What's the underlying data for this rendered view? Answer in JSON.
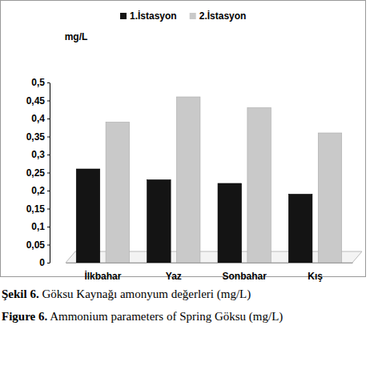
{
  "chart_data": {
    "type": "bar",
    "title": "Şekil 6. Göksu Kaynağı amonyum değerleri (mg/L)",
    "subtitle": "Figure 6. Ammonium parameters of Spring Göksu (mg/L)",
    "y_label": "mg/L",
    "categories": [
      "İlkbahar",
      "Yaz",
      "Sonbahar",
      "Kış"
    ],
    "series": [
      {
        "name": "1.İstasyon",
        "color": "#141414",
        "values": [
          0.26,
          0.23,
          0.22,
          0.19
        ]
      },
      {
        "name": "2.İstasyon",
        "color": "#c9c9c9",
        "values": [
          0.39,
          0.46,
          0.43,
          0.36
        ]
      }
    ],
    "ylim": [
      0,
      0.5
    ],
    "yticks": [
      0,
      {
        "value": 0.05,
        "label": "0,05"
      },
      {
        "value": 0.1,
        "label": "0,1"
      },
      {
        "value": 0.15,
        "label": "0,15"
      },
      {
        "value": 0.2,
        "label": "0,2"
      },
      {
        "value": 0.25,
        "label": "0,25"
      },
      {
        "value": 0.3,
        "label": "0,3"
      },
      {
        "value": 0.35,
        "label": "0,35"
      },
      {
        "value": 0.4,
        "label": "0,4"
      },
      {
        "value": 0.45,
        "label": "0,45"
      },
      {
        "value": 0.5,
        "label": "0,5"
      }
    ],
    "grid": false,
    "legend": "top"
  }
}
